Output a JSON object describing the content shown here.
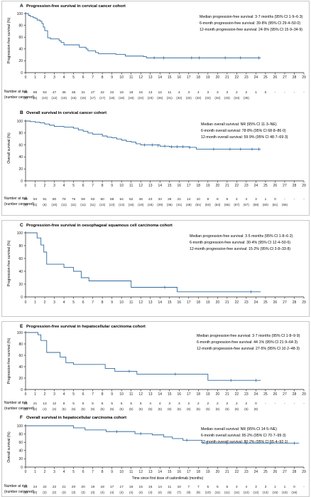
{
  "chart_data": [
    {
      "type": "line",
      "letter": "A",
      "title": "Progression-free survival in cervical cancer cohort",
      "ylabel": "Progression-free survival (%)",
      "xlim": [
        0,
        29
      ],
      "ylim": [
        0,
        100
      ],
      "xticks": [
        0,
        1,
        2,
        3,
        4,
        5,
        6,
        7,
        8,
        9,
        10,
        11,
        12,
        13,
        14,
        15,
        16,
        17,
        18,
        19,
        20,
        21,
        22,
        23,
        24,
        25,
        26,
        27,
        28,
        29
      ],
      "yticks": [
        0,
        20,
        40,
        60,
        80,
        100
      ],
      "annotations": [
        "Median progression-free survival: 3·7 months (95% CI 1·9–6·3)",
        "6-month progression-free survival: 39·8% (95% CI 29·4–50·0)",
        "12-month progression-free survival: 24·9% (95% CI 15·9–34·9)"
      ],
      "series": [
        {
          "x": [
            0,
            0.3,
            0.5,
            0.8,
            1.0,
            1.2,
            1.5,
            1.7,
            1.85,
            2.0,
            2.3,
            2.6,
            3.5,
            3.7,
            4.0,
            5.4,
            5.6,
            6.3,
            6.5,
            7.3,
            7.6,
            9.4,
            10.4,
            11.3,
            12.3,
            12.6,
            24.5
          ],
          "y": [
            100,
            97,
            95,
            93,
            92,
            89,
            87,
            83,
            77,
            71,
            59,
            57,
            54,
            51,
            47,
            47,
            43,
            40,
            37,
            34,
            32,
            31,
            28,
            28,
            27,
            25,
            25
          ]
        }
      ],
      "censored": [
        [
          13.4,
          25
        ],
        [
          14.4,
          25
        ],
        [
          17.3,
          25
        ],
        [
          18.1,
          25
        ],
        [
          20.8,
          25
        ],
        [
          22.4,
          25
        ],
        [
          24.3,
          25
        ]
      ],
      "risk_counts": [
        "99",
        "89",
        "53",
        "47",
        "36",
        "36",
        "31",
        "27",
        "22",
        "22",
        "18",
        "18",
        "16",
        "13",
        "12",
        "11",
        "4",
        "3",
        "4",
        "3",
        "3",
        "3",
        "2",
        "2",
        "1",
        "0",
        "-",
        "-",
        "-",
        "-"
      ],
      "risk_censored": [
        "(0)",
        "(5)",
        "(10)",
        "(12)",
        "(15)",
        "(15)",
        "(15)",
        "(17)",
        "(17)",
        "(18)",
        "(18)",
        "(19)",
        "(22)",
        "(23)",
        "(26)",
        "(31)",
        "(32)",
        "(32)",
        "(32)",
        "(32)",
        "(32)",
        "(33)",
        "(34)",
        "(35)",
        "",
        "",
        "",
        "",
        "",
        ""
      ]
    },
    {
      "type": "line",
      "letter": "B",
      "title": "Overall survival in cervical cancer cohort",
      "ylabel": "Overall survival (%)",
      "xlim": [
        0,
        29
      ],
      "ylim": [
        0,
        100
      ],
      "xticks": [
        0,
        1,
        2,
        3,
        4,
        5,
        6,
        7,
        8,
        9,
        10,
        11,
        12,
        13,
        14,
        15,
        16,
        17,
        18,
        19,
        20,
        21,
        22,
        23,
        24,
        25,
        26,
        27,
        28,
        29
      ],
      "yticks": [
        0,
        20,
        40,
        60,
        80,
        100
      ],
      "annotations": [
        "Median overall survival: NR (95% CI 11·3–NE)",
        "6-month overall survival: 78·8% (95% CI 68·8–86·0)",
        "12-month overall survival: 59·9% (95% CI 48·7–69·3)"
      ],
      "series": [
        {
          "x": [
            0,
            0.5,
            1.0,
            1.5,
            2.0,
            2.5,
            3.0,
            4.0,
            5.0,
            5.5,
            6.0,
            6.5,
            7.0,
            8.0,
            8.5,
            9.0,
            9.5,
            10.0,
            10.5,
            11.0,
            11.5,
            12.0,
            13.0,
            14.0,
            15.0,
            16.0,
            17.0,
            17.8,
            24.5
          ],
          "y": [
            100,
            99,
            98,
            97,
            95,
            93,
            91,
            90,
            88,
            85,
            83,
            80,
            78,
            75,
            73,
            72,
            70,
            68,
            66,
            65,
            62,
            60,
            60,
            58,
            57,
            57,
            56,
            53,
            53
          ]
        }
      ],
      "censored": [
        [
          12.4,
          60
        ],
        [
          13.2,
          60
        ],
        [
          13.8,
          59
        ],
        [
          14.5,
          58
        ],
        [
          15.2,
          57
        ],
        [
          15.8,
          57
        ],
        [
          16.4,
          57
        ],
        [
          17.1,
          56
        ],
        [
          19.6,
          53
        ],
        [
          21.3,
          53
        ],
        [
          22.4,
          53
        ],
        [
          23.6,
          53
        ],
        [
          24.3,
          53
        ]
      ],
      "risk_counts": [
        "99",
        "94",
        "91",
        "80",
        "78",
        "76",
        "69",
        "63",
        "60",
        "58",
        "54",
        "52",
        "46",
        "43",
        "34",
        "26",
        "21",
        "14",
        "10",
        "8",
        "8",
        "5",
        "4",
        "4",
        "3",
        "1",
        "0",
        "-",
        "-",
        "-"
      ],
      "risk_censored": [
        "(0)",
        "(4)",
        "(6)",
        "(10)",
        "(11)",
        "(11)",
        "(11)",
        "(11)",
        "(13)",
        "(13)",
        "(13)",
        "(15)",
        "(18)",
        "(18)",
        "(29)",
        "(36)",
        "(41)",
        "(48)",
        "(51)",
        "(53)",
        "(53)",
        "(56)",
        "(57)",
        "(57)",
        "(58)",
        "(60)",
        "(61)",
        "(66)",
        "",
        ""
      ]
    },
    {
      "type": "line",
      "letter": "C",
      "title": "Progression-free survival in oesophageal squamous cell carcinoma cohort",
      "ylabel": "Progression-free survival (%)",
      "xlim": [
        0,
        29
      ],
      "ylim": [
        0,
        100
      ],
      "xticks": [
        0,
        1,
        2,
        3,
        4,
        5,
        6,
        7,
        8,
        9,
        10,
        11,
        12,
        13,
        14,
        15,
        16,
        17,
        18,
        19,
        20,
        21,
        22,
        23,
        24,
        25,
        26,
        27,
        28,
        29
      ],
      "yticks": [
        0,
        20,
        40,
        60,
        80,
        100
      ],
      "annotations": [
        "Median progression-free survival: 3·5 months (95% CI 1·8–6·2)",
        "6-month progression-free survival: 30·4% (95% CI 12·4–50·6)",
        "12-month progression-free survival: 15·2% (95% CI 3·8–33·8)"
      ],
      "series": [
        {
          "x": [
            0,
            1.2,
            1.6,
            1.9,
            2.2,
            4.0,
            5.0,
            5.8,
            6.6,
            11.0,
            15.8,
            24.5
          ],
          "y": [
            100,
            92,
            81,
            70,
            51,
            46,
            40,
            30,
            25,
            15,
            8,
            8
          ]
        }
      ],
      "censored": [
        [
          14.5,
          15
        ],
        [
          23.5,
          8
        ]
      ]
    },
    {
      "type": "line",
      "letter": "E",
      "title": "Progression-free survival in hepatocellular carcinoma cohort",
      "ylabel": "Progression-free survival (%)",
      "xlim": [
        0,
        29
      ],
      "ylim": [
        0,
        100
      ],
      "xticks": [
        0,
        1,
        2,
        3,
        4,
        5,
        6,
        7,
        8,
        9,
        10,
        11,
        12,
        13,
        14,
        15,
        16,
        17,
        18,
        19,
        20,
        21,
        22,
        23,
        24,
        25,
        26,
        27,
        28,
        29
      ],
      "yticks": [
        0,
        20,
        40,
        60,
        80,
        100
      ],
      "annotations": [
        "Median progression-free survival: 3·7 months (95% CI 1·8–9·9)",
        "6-month progression-free survival: 44·1% (95% CI 21·9–64·3)",
        "12-month progression-free survival: 27·6% (95% CI 10·2–48·3)"
      ],
      "series": [
        {
          "x": [
            0,
            1.3,
            1.6,
            2.2,
            3.6,
            4.2,
            5.0,
            8.3,
            9.3,
            11.6,
            19.0,
            24.5
          ],
          "y": [
            100,
            96,
            86,
            65,
            57,
            47,
            44,
            37,
            32,
            27,
            16,
            16
          ]
        }
      ],
      "censored": [
        [
          10.8,
          32
        ],
        [
          15.6,
          27
        ],
        [
          21.4,
          16
        ],
        [
          24.0,
          16
        ]
      ],
      "risk_counts": [
        "24",
        "21",
        "13",
        "12",
        "9",
        "5",
        "5",
        "5",
        "5",
        "5",
        "5",
        "5",
        "5",
        "4",
        "4",
        "3",
        "3",
        "2",
        "2",
        "2",
        "2",
        "2",
        "2",
        "2",
        "0",
        "-",
        "-",
        "-",
        "-",
        "-"
      ],
      "risk_censored": [
        "(0)",
        "(2)",
        "(4)",
        "(4)",
        "(5)",
        "(5)",
        "(5)",
        "(5)",
        "(5)",
        "(5)",
        "(5)",
        "(5)",
        "(5)",
        "(5)",
        "(5)",
        "(6)",
        "(6)",
        "(6)",
        "(6)",
        "(6)",
        "(6)",
        "(6)",
        "(6)",
        "(6)",
        "(8)",
        "",
        "",
        "",
        "",
        ""
      ]
    },
    {
      "type": "line",
      "letter": "F",
      "title": "Overall survival in hepatocellular carcinoma cohort",
      "ylabel": "Overall survival (%)",
      "xlabel": "Time since first dose of cadonilimab (months)",
      "xlim": [
        0,
        29
      ],
      "ylim": [
        0,
        100
      ],
      "xticks": [
        0,
        1,
        2,
        3,
        4,
        5,
        6,
        7,
        8,
        9,
        10,
        11,
        12,
        13,
        14,
        15,
        16,
        17,
        18,
        19,
        20,
        21,
        22,
        23,
        24,
        25,
        26,
        27,
        28,
        29
      ],
      "yticks": [
        0,
        20,
        40,
        60,
        80,
        100
      ],
      "annotations": [
        "Median overall survival: NR (95% CI 14·5–NE)",
        "6-month overall survival: 95·2% (95% CI 70·7–99·3)",
        "12-month overall survival: 80·2% (95% CI 55·4–92·1)"
      ],
      "series": [
        {
          "x": [
            0,
            4.3,
            5.0,
            6.2,
            8.4,
            10.3,
            11.4,
            12.4,
            13.2,
            14.4,
            15.3,
            16.4,
            17.3,
            18.4,
            28.5
          ],
          "y": [
            100,
            100,
            95,
            90,
            86,
            86,
            81,
            81,
            78,
            73,
            69,
            65,
            65,
            58,
            58
          ]
        }
      ],
      "censored": [
        [
          9.5,
          86
        ],
        [
          12.0,
          81
        ],
        [
          16.8,
          65
        ],
        [
          18.9,
          58
        ],
        [
          21.0,
          58
        ],
        [
          23.0,
          58
        ],
        [
          25.5,
          58
        ],
        [
          28.0,
          58
        ]
      ],
      "risk_counts": [
        "24",
        "24",
        "22",
        "22",
        "21",
        "20",
        "20",
        "19",
        "18",
        "17",
        "17",
        "16",
        "15",
        "15",
        "14",
        "11",
        "10",
        "7",
        "7",
        "5",
        "5",
        "5",
        "4",
        "4",
        "3",
        "3",
        "1",
        "1",
        "0",
        "-"
      ],
      "risk_censored": [
        "(0)",
        "(0)",
        "(2)",
        "(2)",
        "(3)",
        "(3)",
        "(3)",
        "(3)",
        "(4)",
        "(4)",
        "(4)",
        "(4)",
        "(4)",
        "(4)",
        "(4)",
        "(6)",
        "(7)",
        "(9)",
        "(9)",
        "(10)",
        "(11)",
        "(11)",
        "(11)",
        "(12)",
        "(12)",
        "(13)",
        "(15)",
        "(15)",
        "(16)",
        ""
      ]
    }
  ],
  "risk_label": {
    "line1": "Number at risk",
    "line2": "(number censored)"
  },
  "colors": {
    "curve": "#2e6a9f",
    "axis": "#231f20",
    "text": "#231f20",
    "frame": "#c8c8c8"
  }
}
